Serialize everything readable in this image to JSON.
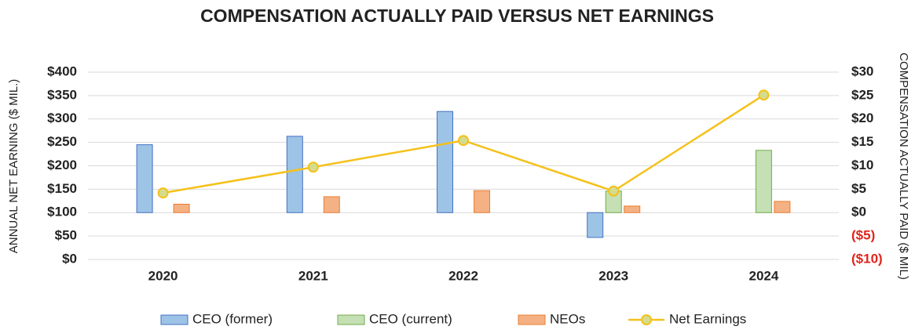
{
  "chart_data": {
    "type": "bar",
    "title": "COMPENSATION ACTUALLY PAID VERSUS NET EARNINGS",
    "y_label": "ANNUAL NET EARNING ($ MIL.)",
    "y2_label": "COMPENSATION ACTUALLY PAID ($ MIL)",
    "categories": [
      "2020",
      "2021",
      "2022",
      "2023",
      "2024"
    ],
    "ylim": [
      0,
      400
    ],
    "yticks": [
      {
        "value": 0,
        "label": "$0"
      },
      {
        "value": 50,
        "label": "$50"
      },
      {
        "value": 100,
        "label": "$100"
      },
      {
        "value": 150,
        "label": "$150"
      },
      {
        "value": 200,
        "label": "$200"
      },
      {
        "value": 250,
        "label": "$250"
      },
      {
        "value": 300,
        "label": "$300"
      },
      {
        "value": 350,
        "label": "$350"
      },
      {
        "value": 400,
        "label": "$400"
      }
    ],
    "y2lim": [
      -10,
      30
    ],
    "y2ticks": [
      {
        "value": -10,
        "label": "($10)"
      },
      {
        "value": -5,
        "label": "($5)"
      },
      {
        "value": 0,
        "label": "$0"
      },
      {
        "value": 5,
        "label": "$5"
      },
      {
        "value": 10,
        "label": "$10"
      },
      {
        "value": 15,
        "label": "$15"
      },
      {
        "value": 20,
        "label": "$20"
      },
      {
        "value": 25,
        "label": "$25"
      },
      {
        "value": 30,
        "label": "$30"
      }
    ],
    "y2_negative_color": "#e0251b",
    "grid": true,
    "legend": "bottom",
    "series": [
      {
        "name": "CEO (former)",
        "type": "bar",
        "axis": "y2",
        "color": "#9dc3e6",
        "edge_color": "#4472c4",
        "values": [
          14.5,
          16.3,
          21.6,
          -5.3,
          null
        ]
      },
      {
        "name": "CEO (current)",
        "type": "bar",
        "axis": "y2",
        "color": "#c5e0b4",
        "edge_color": "#70ad47",
        "values": [
          null,
          null,
          null,
          4.6,
          13.3
        ]
      },
      {
        "name": "NEOs",
        "type": "bar",
        "axis": "y2",
        "color": "#f4b183",
        "edge_color": "#ed7d31",
        "values": [
          1.8,
          3.4,
          4.7,
          1.4,
          2.4
        ]
      },
      {
        "name": "Net Earnings",
        "type": "line",
        "color": "#f5c11a",
        "marker_color": "#d4dc8e",
        "values": [
          142,
          197,
          254,
          146,
          351
        ]
      }
    ]
  }
}
